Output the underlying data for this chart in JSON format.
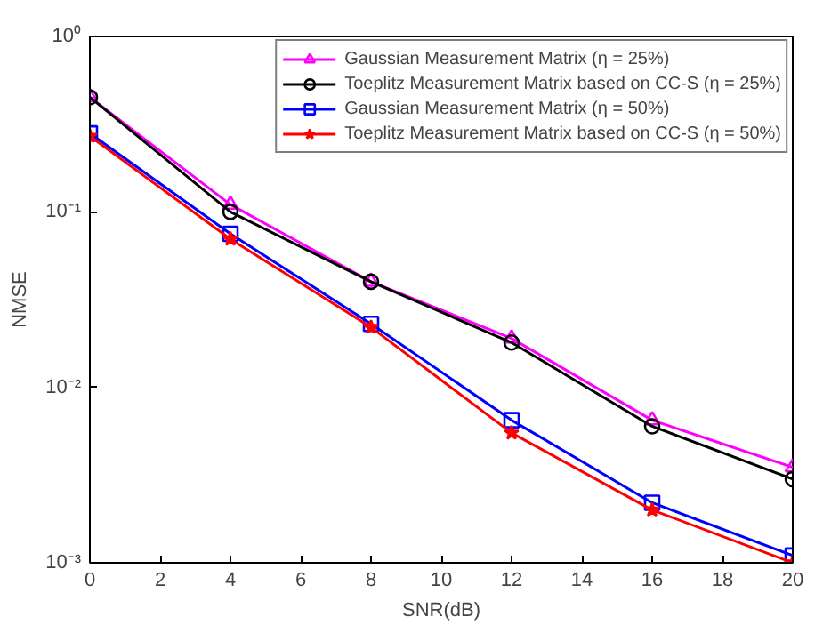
{
  "chart_data": {
    "type": "line",
    "xlabel": "SNR(dB)",
    "ylabel": "NMSE",
    "x": [
      0,
      4,
      8,
      12,
      16,
      20
    ],
    "series": [
      {
        "name": "Gaussian Measurement Matrix (η = 25%)",
        "color": "#ff00ff",
        "marker": "triangle",
        "values": [
          0.45,
          0.11,
          0.04,
          0.019,
          0.0065,
          0.0035
        ]
      },
      {
        "name": "Toeplitz Measurement Matrix based on CC-S (η = 25%)",
        "color": "#000000",
        "marker": "circle",
        "values": [
          0.45,
          0.1,
          0.04,
          0.018,
          0.006,
          0.003
        ]
      },
      {
        "name": "Gaussian Measurement Matrix (η = 50%)",
        "color": "#0000ff",
        "marker": "square",
        "values": [
          0.28,
          0.075,
          0.023,
          0.0065,
          0.0022,
          0.0011
        ]
      },
      {
        "name": "Toeplitz Measurement Matrix based on CC-S (η = 50%)",
        "color": "#ff0000",
        "marker": "star",
        "values": [
          0.27,
          0.07,
          0.022,
          0.0055,
          0.002,
          0.001
        ]
      }
    ],
    "log": "y",
    "xlim": [
      0,
      20
    ],
    "ylim": [
      0.001,
      1
    ],
    "xticks": [
      0,
      2,
      4,
      6,
      8,
      10,
      12,
      14,
      16,
      18,
      20
    ],
    "yticks": [
      {
        "value": 0.001,
        "label": "10⁻³"
      },
      {
        "value": 0.01,
        "label": "10⁻²"
      },
      {
        "value": 0.1,
        "label": "10⁻¹"
      },
      {
        "value": 1,
        "label": "10⁰"
      }
    ],
    "grid": false,
    "legend": "top right",
    "line_style": "solid"
  }
}
